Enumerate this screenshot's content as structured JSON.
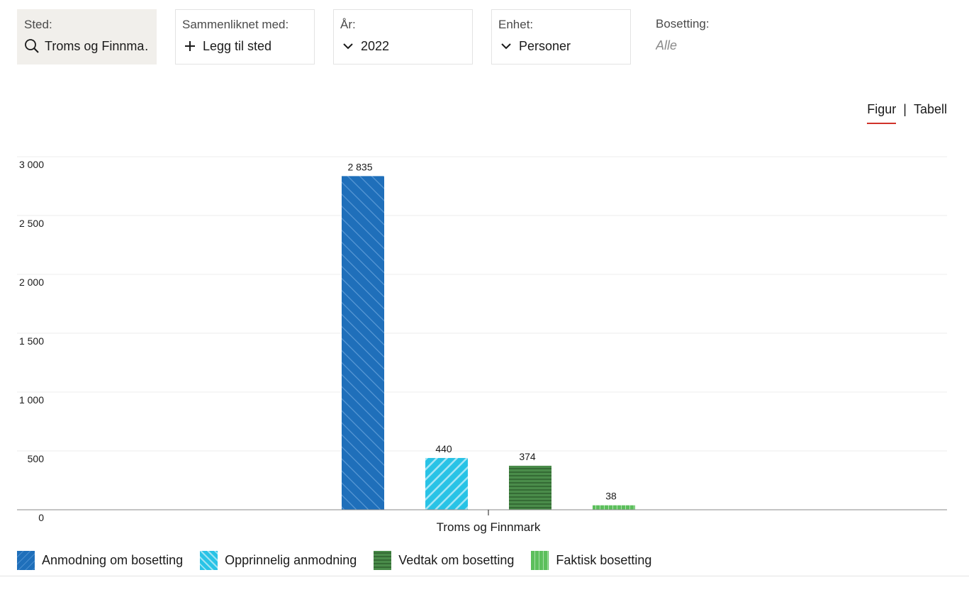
{
  "filters": {
    "sted": {
      "label": "Sted:",
      "value": "Troms og Finnma…",
      "icon": "search-icon"
    },
    "sammenliknet": {
      "label": "Sammenliknet med:",
      "value": "Legg til sted",
      "icon": "plus-icon"
    },
    "aar": {
      "label": "År:",
      "value": "2022",
      "icon": "chevron-down-icon"
    },
    "enhet": {
      "label": "Enhet:",
      "value": "Personer",
      "icon": "chevron-down-icon"
    },
    "bosetting": {
      "label": "Bosetting:",
      "value": "Alle"
    }
  },
  "view_toggle": {
    "figur": "Figur",
    "separator": "|",
    "tabell": "Tabell",
    "active": "figur"
  },
  "chart_data": {
    "type": "bar",
    "categories": [
      "Troms og Finnmark"
    ],
    "series": [
      {
        "name": "Anmodning om bosetting",
        "values": [
          2835
        ],
        "value_label": "2 835",
        "color": "#1f6fba"
      },
      {
        "name": "Opprinnelig anmodning",
        "values": [
          440
        ],
        "value_label": "440",
        "color": "#28c3e6"
      },
      {
        "name": "Vedtak om bosetting",
        "values": [
          374
        ],
        "value_label": "374",
        "color": "#3f7f3f"
      },
      {
        "name": "Faktisk bosetting",
        "values": [
          38
        ],
        "value_label": "38",
        "color": "#5cbf5c"
      }
    ],
    "ylim": [
      0,
      3000
    ],
    "yticks": [
      0,
      500,
      1000,
      1500,
      2000,
      2500,
      3000
    ],
    "ytick_labels": [
      "0",
      "500",
      "1 000",
      "1 500",
      "2 000",
      "2 500",
      "3 000"
    ],
    "grid": true,
    "legend": "bottom-left"
  }
}
